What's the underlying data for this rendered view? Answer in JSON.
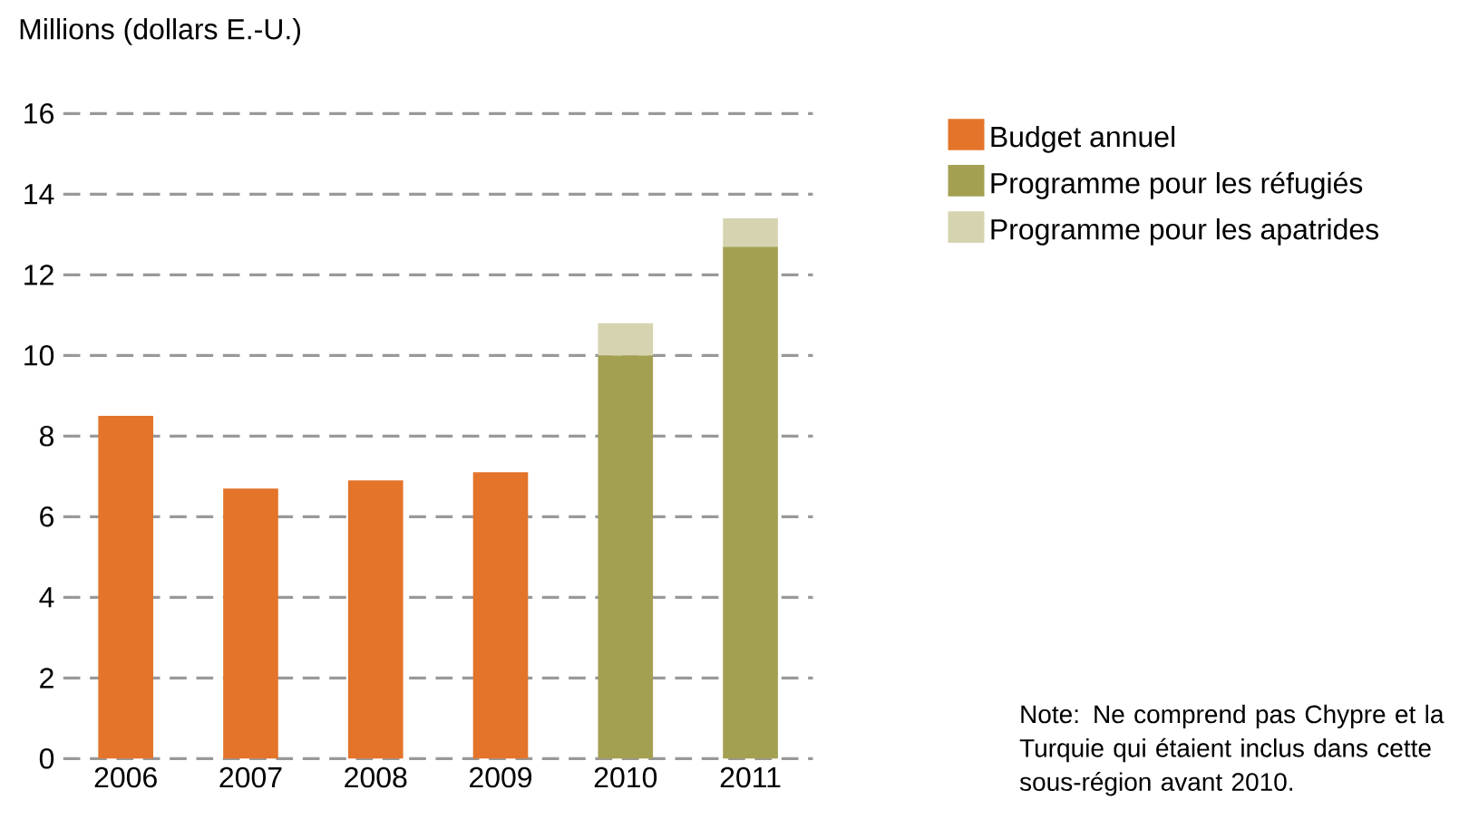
{
  "chart_data": {
    "type": "bar",
    "stacked": true,
    "ylabel": "Millions (dollars E.-U.)",
    "categories": [
      "2006",
      "2007",
      "2008",
      "2009",
      "2010",
      "2011"
    ],
    "series": [
      {
        "name": "Budget annuel",
        "color": "#e3742a",
        "values": [
          8.5,
          6.7,
          6.9,
          7.1,
          null,
          null
        ]
      },
      {
        "name": "Programme pour les réfugiés",
        "color": "#a3a052",
        "values": [
          null,
          null,
          null,
          null,
          10.0,
          12.7
        ]
      },
      {
        "name": "Programme pour les apatrides",
        "color": "#d6d4b0",
        "values": [
          null,
          null,
          null,
          null,
          0.8,
          0.7
        ]
      }
    ],
    "ylim": [
      0,
      16
    ],
    "yticks": [
      0,
      2,
      4,
      6,
      8,
      10,
      12,
      14,
      16
    ],
    "grid": "y",
    "legend": "top right",
    "annotations": [
      "Note: Ne comprend pas Chypre et la Turquie qui étaient inclus dans cette sous-région avant 2010."
    ]
  }
}
